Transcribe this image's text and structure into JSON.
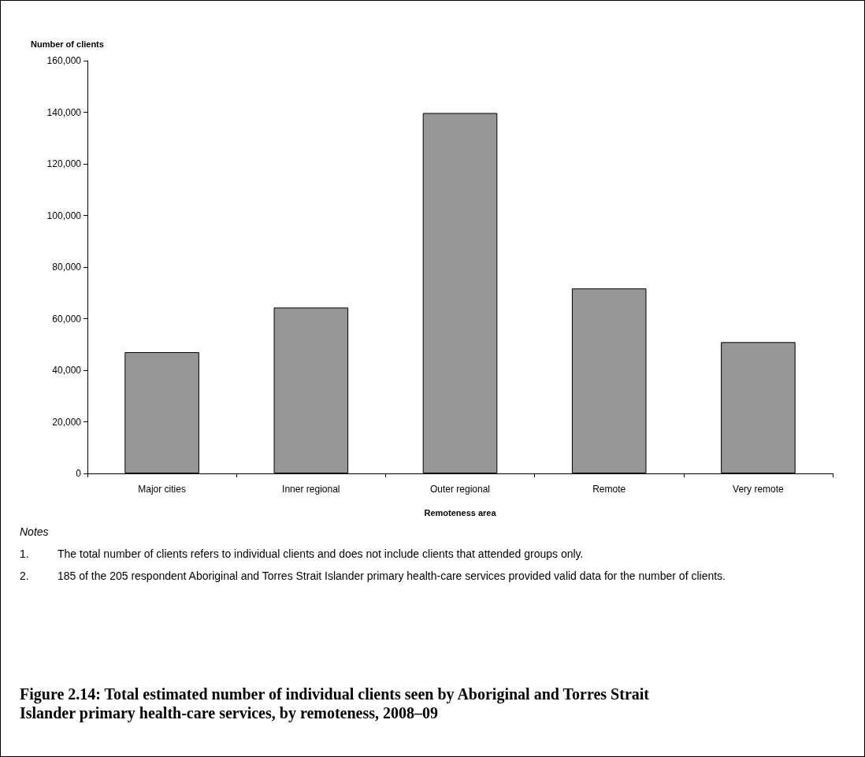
{
  "chart_data": {
    "type": "bar",
    "title": "Figure 2.14: Total estimated number of individual clients seen by Aboriginal and Torres Strait Islander primary health-care services, by remoteness, 2008–09",
    "xlabel": "Remoteness area",
    "ylabel": "Number of clients",
    "categories": [
      "Major cities",
      "Inner regional",
      "Outer regional",
      "Remote",
      "Very remote"
    ],
    "values": [
      47000,
      64300,
      139700,
      71700,
      50900
    ],
    "color": "#969696",
    "ylim": [
      0,
      160000
    ],
    "yticks": [
      0,
      {
        "value": 20000,
        "label": "20,000"
      },
      {
        "value": 40000,
        "label": "40,000"
      },
      {
        "value": 60000,
        "label": "60,000"
      },
      {
        "value": 80000,
        "label": "80,000"
      },
      {
        "value": 100000,
        "label": "100,000"
      },
      {
        "value": 120000,
        "label": "120,000"
      },
      {
        "value": 140000,
        "label": "140,000"
      },
      {
        "value": 160000,
        "label": "160,000"
      }
    ],
    "grid": false,
    "annotations": [
      "Notes",
      "1.\tThe total number of clients refers to individual clients and does not include clients that attended groups only.",
      "2.\t185 of the 205 respondent Aboriginal and Torres Strait Islander primary health-care services provided valid data for the number of clients."
    ]
  }
}
